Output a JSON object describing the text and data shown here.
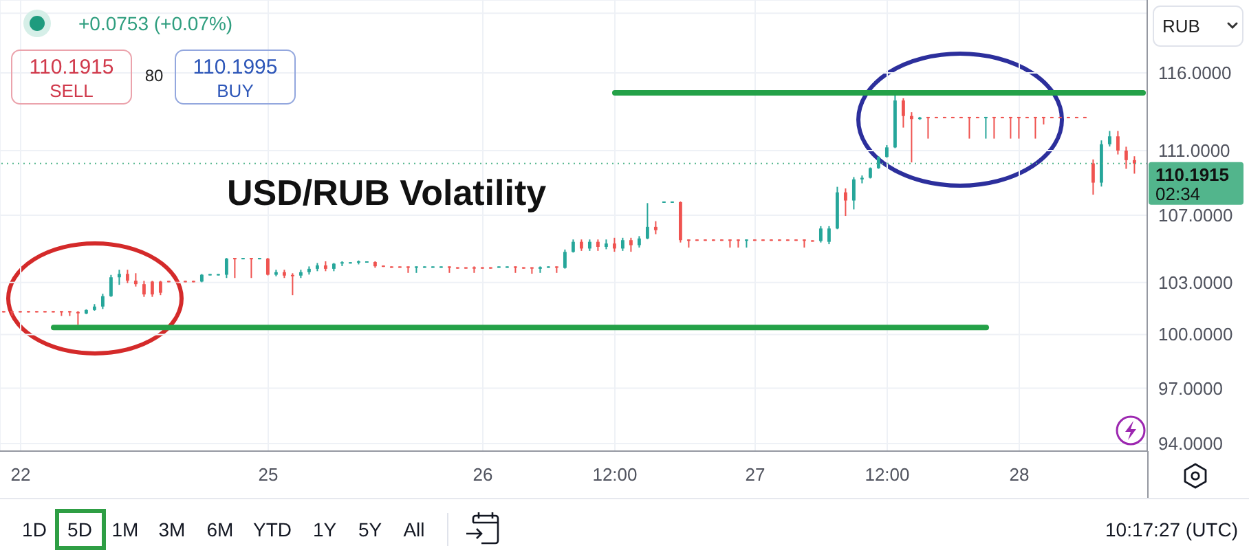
{
  "chart_data": {
    "type": "candlestick",
    "title": "USD/RUB Volatility",
    "categories": [
      null,
      null,
      "22",
      null,
      null,
      null,
      null,
      null,
      null,
      null,
      null,
      null,
      null,
      null,
      null,
      null,
      null,
      null,
      null,
      null,
      null,
      null,
      null,
      null,
      null,
      null,
      null,
      null,
      null,
      null,
      null,
      null,
      "25",
      null,
      null,
      null,
      null,
      null,
      null,
      null,
      null,
      null,
      null,
      null,
      null,
      null,
      null,
      null,
      null,
      null,
      null,
      null,
      null,
      null,
      null,
      null,
      null,
      null,
      "26",
      null,
      null,
      null,
      null,
      null,
      null,
      null,
      null,
      null,
      null,
      null,
      null,
      null,
      null,
      null,
      "12:00",
      null,
      null,
      null,
      null,
      null,
      null,
      null,
      null,
      null,
      null,
      null,
      null,
      null,
      null,
      null,
      null,
      "27",
      null,
      null,
      null,
      null,
      null,
      null,
      null,
      null,
      null,
      null,
      null,
      null,
      null,
      null,
      null,
      "12:00",
      null,
      null,
      null,
      null,
      null,
      null,
      null,
      null,
      null,
      null,
      null,
      null,
      null,
      null,
      null,
      "28",
      null,
      null,
      null,
      null,
      null,
      null,
      null,
      null,
      null,
      null,
      null,
      null,
      null,
      null,
      null
    ],
    "ohlc": [
      [
        101.3,
        101.3,
        101.3,
        101.3
      ],
      [
        101.3,
        101.3,
        101.1,
        101.3
      ],
      [
        101.3,
        101.3,
        101.3,
        101.3
      ],
      [
        101.3,
        101.3,
        101.3,
        101.3
      ],
      [
        101.3,
        101.3,
        101.3,
        101.3
      ],
      [
        101.3,
        101.3,
        101.3,
        101.3
      ],
      [
        101.3,
        101.3,
        101.3,
        101.3
      ],
      [
        101.3,
        101.3,
        101.1,
        101.3
      ],
      [
        101.3,
        101.3,
        101.1,
        101.25
      ],
      [
        101.25,
        101.3,
        100.6,
        101.2
      ],
      [
        101.2,
        101.4,
        101.2,
        101.4
      ],
      [
        101.4,
        101.7,
        101.4,
        101.6
      ],
      [
        101.6,
        102.3,
        101.5,
        102.2
      ],
      [
        102.2,
        103.4,
        102.2,
        103.3
      ],
      [
        103.3,
        103.7,
        102.9,
        103.5
      ],
      [
        103.5,
        103.7,
        103,
        103.1
      ],
      [
        103.1,
        103.5,
        102.8,
        102.9
      ],
      [
        102.9,
        103.05,
        102.2,
        102.3
      ],
      [
        103.05,
        103.05,
        102.2,
        102.3
      ],
      [
        103.05,
        103.05,
        102.3,
        102.4
      ],
      [
        103.05,
        103.05,
        103.05,
        103.05
      ],
      [
        103.05,
        103.05,
        103.05,
        103.05
      ],
      [
        103.05,
        103.05,
        103.05,
        103.05
      ],
      [
        103.05,
        103.05,
        103.05,
        103.05
      ],
      [
        103.05,
        103.45,
        103.05,
        103.45
      ],
      [
        103.45,
        103.45,
        103.45,
        103.45
      ],
      [
        103.45,
        103.45,
        103.45,
        103.45
      ],
      [
        103.45,
        104.4,
        103.3,
        104.4
      ],
      [
        104.4,
        104.4,
        103.3,
        104.35
      ],
      [
        104.4,
        104.4,
        104.4,
        104.4
      ],
      [
        104.4,
        104.4,
        103.3,
        104.35
      ],
      [
        104.4,
        104.4,
        104.4,
        104.4
      ],
      [
        104.4,
        104.4,
        103.45,
        103.45
      ],
      [
        103.45,
        103.7,
        103.4,
        103.6
      ],
      [
        103.6,
        103.7,
        103.3,
        103.4
      ],
      [
        103.4,
        103.5,
        102.3,
        103.4
      ],
      [
        103.4,
        103.7,
        103.3,
        103.6
      ],
      [
        103.6,
        103.9,
        103.5,
        103.8
      ],
      [
        103.8,
        104.1,
        103.7,
        104
      ],
      [
        104,
        104.2,
        103.7,
        103.8
      ],
      [
        103.8,
        104.1,
        103.7,
        104.1
      ],
      [
        104.1,
        104.2,
        104,
        104.15
      ],
      [
        104.15,
        104.15,
        104.15,
        104.15
      ],
      [
        104.15,
        104.25,
        104.1,
        104.2
      ],
      [
        104.2,
        104.2,
        104.2,
        104.2
      ],
      [
        104.2,
        104.2,
        103.9,
        103.95
      ],
      [
        103.95,
        103.95,
        103.95,
        103.95
      ],
      [
        103.9,
        103.9,
        103.9,
        103.9
      ],
      [
        103.9,
        103.9,
        103.9,
        103.9
      ],
      [
        103.9,
        103.9,
        103.6,
        103.85
      ],
      [
        103.85,
        103.9,
        103.6,
        103.9
      ],
      [
        103.9,
        103.9,
        103.9,
        103.9
      ],
      [
        103.9,
        103.9,
        103.9,
        103.9
      ],
      [
        103.9,
        103.9,
        103.9,
        103.9
      ],
      [
        103.9,
        103.9,
        103.6,
        103.85
      ],
      [
        103.85,
        103.85,
        103.85,
        103.85
      ],
      [
        103.85,
        103.85,
        103.85,
        103.85
      ],
      [
        103.85,
        103.9,
        103.6,
        103.85
      ],
      [
        103.85,
        103.85,
        103.85,
        103.85
      ],
      [
        103.85,
        103.85,
        103.85,
        103.85
      ],
      [
        103.9,
        103.9,
        103.9,
        103.9
      ],
      [
        103.9,
        103.9,
        103.9,
        103.9
      ],
      [
        103.9,
        103.9,
        103.6,
        103.85
      ],
      [
        103.85,
        103.85,
        103.85,
        103.85
      ],
      [
        103.85,
        103.85,
        103.55,
        103.8
      ],
      [
        103.8,
        103.9,
        103.6,
        103.9
      ],
      [
        103.9,
        103.9,
        103.9,
        103.9
      ],
      [
        103.9,
        103.9,
        103.6,
        103.85
      ],
      [
        103.85,
        104.9,
        103.85,
        104.8
      ],
      [
        104.8,
        105.5,
        104.8,
        105.4
      ],
      [
        105.4,
        105.5,
        104.9,
        105
      ],
      [
        105,
        105.5,
        104.9,
        105.4
      ],
      [
        105.4,
        105.5,
        104.9,
        105.1
      ],
      [
        105.1,
        105.5,
        105,
        105.3
      ],
      [
        105.3,
        105.6,
        104.85,
        105
      ],
      [
        105,
        105.6,
        104.9,
        105.5
      ],
      [
        105.5,
        105.6,
        104.85,
        105.2
      ],
      [
        105.2,
        105.7,
        105.1,
        105.6
      ],
      [
        105.6,
        107.7,
        105.6,
        106.3
      ],
      [
        106.3,
        106.6,
        105.9,
        106.1
      ],
      [
        107.8,
        107.8,
        107.8,
        107.8
      ],
      [
        107.8,
        107.8,
        107.8,
        107.8
      ],
      [
        107.8,
        107.8,
        105.4,
        105.5
      ],
      [
        105.5,
        105.5,
        105.1,
        105.5
      ],
      [
        105.5,
        105.5,
        105.5,
        105.5
      ],
      [
        105.5,
        105.5,
        105.5,
        105.5
      ],
      [
        105.5,
        105.5,
        105.5,
        105.5
      ],
      [
        105.5,
        105.5,
        105.5,
        105.5
      ],
      [
        105.5,
        105.5,
        105.1,
        105.45
      ],
      [
        105.5,
        105.5,
        105.1,
        105.45
      ],
      [
        105.45,
        105.5,
        105.1,
        105.5
      ],
      [
        105.5,
        105.5,
        105.5,
        105.5
      ],
      [
        105.5,
        105.5,
        105.5,
        105.5
      ],
      [
        105.5,
        105.5,
        105.5,
        105.5
      ],
      [
        105.5,
        105.5,
        105.5,
        105.5
      ],
      [
        105.5,
        105.5,
        105.5,
        105.5
      ],
      [
        105.5,
        105.5,
        105.5,
        105.5
      ],
      [
        105.5,
        105.5,
        105.1,
        105.45
      ],
      [
        105.45,
        105.45,
        105.45,
        105.45
      ],
      [
        105.45,
        106.3,
        105.4,
        106.2
      ],
      [
        105.4,
        106.3,
        105.3,
        106.2
      ],
      [
        106.2,
        108.7,
        106.2,
        108.4
      ],
      [
        108.4,
        108.6,
        107,
        107.9
      ],
      [
        107.9,
        109.3,
        107.4,
        109.2
      ],
      [
        109.2,
        109.4,
        109,
        109.3
      ],
      [
        109.3,
        109.9,
        109.3,
        109.9
      ],
      [
        109.9,
        110.6,
        109.9,
        110.6
      ],
      [
        110.6,
        111.3,
        110.6,
        111.2
      ],
      [
        111.2,
        114.5,
        111.2,
        114.2
      ],
      [
        114.2,
        114.3,
        112.5,
        113.2
      ],
      [
        113.2,
        113.4,
        110.3,
        113
      ],
      [
        113,
        113.1,
        113,
        113.1
      ],
      [
        113.1,
        113.1,
        111.8,
        113.05
      ],
      [
        113.1,
        113.1,
        113.1,
        113.1
      ],
      [
        113.1,
        113.1,
        113.1,
        113.1
      ],
      [
        113.1,
        113.1,
        113.1,
        113.1
      ],
      [
        113.1,
        113.1,
        113.1,
        113.1
      ],
      [
        113.1,
        113.1,
        111.8,
        113.05
      ],
      [
        113.1,
        113.1,
        113.1,
        113.1
      ],
      [
        113.05,
        113.1,
        111.8,
        113.1
      ],
      [
        113.1,
        113.1,
        111.8,
        113.05
      ],
      [
        113.1,
        113.1,
        113.1,
        113.1
      ],
      [
        113.1,
        113.1,
        111.8,
        113.05
      ],
      [
        113.1,
        113.1,
        111.8,
        113.05
      ],
      [
        113.1,
        113.1,
        113.1,
        113.1
      ],
      [
        113.1,
        113.1,
        111.8,
        113.05
      ],
      [
        113.1,
        113.1,
        112.7,
        113.05
      ],
      [
        113.1,
        113.1,
        113.1,
        113.1
      ],
      [
        113.1,
        113.1,
        113.1,
        113.1
      ],
      [
        113.1,
        113.1,
        113.1,
        113.1
      ],
      [
        113.1,
        113.1,
        113.1,
        113.1
      ],
      [
        113.1,
        113.1,
        113.1,
        113.1
      ],
      [
        110.2,
        110.4,
        108.3,
        109
      ],
      [
        109,
        111.6,
        108.8,
        111.4
      ],
      [
        111.4,
        112.2,
        111.3,
        111.9
      ],
      [
        111.9,
        112.2,
        110.8,
        111
      ],
      [
        111,
        111.2,
        109.9,
        110.4
      ],
      [
        110.4,
        110.6,
        109.6,
        110.19
      ],
      null
    ],
    "colors": [
      "#ef5350",
      "#ef5350",
      "#ef5350",
      "#ef5350",
      "#ef5350",
      "#ef5350",
      "#ef5350",
      "#ef5350",
      "#ef5350",
      "#ef5350",
      "#26a69a",
      "#26a69a",
      "#26a69a",
      "#26a69a",
      "#26a69a",
      "#ef5350",
      "#ef5350",
      "#ef5350",
      "#ef5350",
      "#ef5350",
      "#ef5350",
      "#ef5350",
      "#ef5350",
      "#ef5350",
      "#26a69a",
      "#26a69a",
      "#26a69a",
      "#26a69a",
      "#ef5350",
      "#26a69a",
      "#ef5350",
      "#26a69a",
      "#ef5350",
      "#26a69a",
      "#ef5350",
      "#ef5350",
      "#26a69a",
      "#26a69a",
      "#26a69a",
      "#ef5350",
      "#26a69a",
      "#26a69a",
      "#26a69a",
      "#26a69a",
      "#26a69a",
      "#ef5350",
      "#ef5350",
      "#ef5350",
      "#ef5350",
      "#ef5350",
      "#26a69a",
      "#26a69a",
      "#26a69a",
      "#26a69a",
      "#ef5350",
      "#ef5350",
      "#ef5350",
      "#ef5350",
      "#ef5350",
      "#ef5350",
      "#26a69a",
      "#26a69a",
      "#ef5350",
      "#ef5350",
      "#ef5350",
      "#26a69a",
      "#26a69a",
      "#ef5350",
      "#26a69a",
      "#26a69a",
      "#ef5350",
      "#26a69a",
      "#ef5350",
      "#26a69a",
      "#ef5350",
      "#26a69a",
      "#ef5350",
      "#26a69a",
      "#26a69a",
      "#ef5350",
      "#26a69a",
      "#26a69a",
      "#ef5350",
      "#ef5350",
      "#ef5350",
      "#ef5350",
      "#ef5350",
      "#ef5350",
      "#ef5350",
      "#ef5350",
      "#26a69a",
      "#ef5350",
      "#ef5350",
      "#ef5350",
      "#ef5350",
      "#ef5350",
      "#ef5350",
      "#ef5350",
      "#ef5350",
      "#26a69a",
      "#26a69a",
      "#26a69a",
      "#ef5350",
      "#26a69a",
      "#26a69a",
      "#26a69a",
      "#26a69a",
      "#26a69a",
      "#26a69a",
      "#ef5350",
      "#ef5350",
      "#26a69a",
      "#ef5350",
      "#ef5350",
      "#ef5350",
      "#ef5350",
      "#ef5350",
      "#ef5350",
      "#ef5350",
      "#26a69a",
      "#ef5350",
      "#ef5350",
      "#ef5350",
      "#ef5350",
      "#ef5350",
      "#ef5350",
      "#ef5350",
      "#ef5350",
      "#ef5350",
      "#ef5350",
      "#ef5350",
      "#ef5350",
      "#ef5350",
      "#26a69a",
      "#26a69a",
      "#ef5350",
      "#ef5350",
      "#ef5350",
      null
    ],
    "series": [
      {
        "type": "line",
        "color": "#24a148",
        "values": [
          null,
          null,
          null,
          null,
          null,
          null,
          100.4,
          100.4,
          100.4,
          100.4,
          100.4,
          100.4,
          100.4,
          100.4,
          100.4,
          100.4,
          100.4,
          100.4,
          100.4,
          100.4,
          100.4,
          100.4,
          100.4,
          100.4,
          100.4,
          100.4,
          100.4,
          100.4,
          100.4,
          100.4,
          100.4,
          100.4,
          100.4,
          100.4,
          100.4,
          100.4,
          100.4,
          100.4,
          100.4,
          100.4,
          100.4,
          100.4,
          100.4,
          100.4,
          100.4,
          100.4,
          100.4,
          100.4,
          100.4,
          100.4,
          100.4,
          100.4,
          100.4,
          100.4,
          100.4,
          100.4,
          100.4,
          100.4,
          100.4,
          100.4,
          100.4,
          100.4,
          100.4,
          100.4,
          100.4,
          100.4,
          100.4,
          100.4,
          100.4,
          100.4,
          100.4,
          100.4,
          100.4,
          100.4,
          100.4,
          100.4,
          100.4,
          100.4,
          100.4,
          100.4,
          100.4,
          100.4,
          100.4,
          100.4,
          100.4,
          100.4,
          100.4,
          100.4,
          100.4,
          100.4,
          100.4,
          100.4,
          100.4,
          100.4,
          100.4,
          100.4,
          100.4,
          100.4,
          100.4,
          100.4,
          100.4,
          100.4,
          100.4,
          100.4,
          100.4,
          100.4,
          100.4,
          100.4,
          100.4,
          100.4,
          100.4,
          100.4,
          100.4,
          100.4,
          100.4,
          100.4,
          100.4,
          100.4,
          100.4,
          100.4,
          null,
          null,
          null,
          null,
          null,
          null,
          null,
          null,
          null,
          null,
          null,
          null,
          null,
          null,
          null,
          null,
          null,
          null,
          null
        ]
      },
      {
        "type": "line",
        "color": "#24a148",
        "values": [
          null,
          null,
          null,
          null,
          null,
          null,
          null,
          null,
          null,
          null,
          null,
          null,
          null,
          null,
          null,
          null,
          null,
          null,
          null,
          null,
          null,
          null,
          null,
          null,
          null,
          null,
          null,
          null,
          null,
          null,
          null,
          null,
          null,
          null,
          null,
          null,
          null,
          null,
          null,
          null,
          null,
          null,
          null,
          null,
          null,
          null,
          null,
          null,
          null,
          null,
          null,
          null,
          null,
          null,
          null,
          null,
          null,
          null,
          null,
          null,
          null,
          null,
          null,
          null,
          null,
          null,
          null,
          null,
          null,
          null,
          null,
          null,
          null,
          null,
          114.7,
          114.7,
          114.7,
          114.7,
          114.7,
          114.7,
          114.7,
          114.7,
          114.7,
          114.7,
          114.7,
          114.7,
          114.7,
          114.7,
          114.7,
          114.7,
          114.7,
          114.7,
          114.7,
          114.7,
          114.7,
          114.7,
          114.7,
          114.7,
          114.7,
          114.7,
          114.7,
          114.7,
          114.7,
          114.7,
          114.7,
          114.7,
          114.7,
          114.7,
          114.7,
          114.7,
          114.7,
          114.7,
          114.7,
          114.7,
          114.7,
          114.7,
          114.7,
          114.7,
          114.7,
          114.7,
          114.7,
          114.7,
          114.7,
          114.7,
          114.7,
          114.7,
          114.7,
          114.7,
          114.7,
          114.7,
          114.7,
          114.7,
          114.7,
          114.7,
          114.7,
          114.7,
          114.7,
          114.7,
          114.7
        ]
      }
    ],
    "ylim": [
      93.6,
      120.9
    ],
    "yticks": [
      {
        "value": 94,
        "label": "94.0000"
      },
      {
        "value": 97,
        "label": "97.0000"
      },
      {
        "value": 100,
        "label": "100.0000"
      },
      {
        "value": 103,
        "label": "103.0000"
      },
      {
        "value": 107,
        "label": "107.0000"
      },
      {
        "value": 111,
        "label": "111.0000"
      },
      {
        "value": 116,
        "label": "116.0000"
      },
      {
        "value": 120,
        "label": null
      }
    ],
    "log": true,
    "grid": true,
    "ref_lines": [
      {
        "axis": "y",
        "value": 110.1915,
        "label": "110.1915",
        "color": "#52b58c",
        "line_style": "dotted"
      }
    ],
    "annotations": [
      "+0.0753 (+0.07%)",
      "110.1915",
      "SELL",
      "80",
      "110.1995",
      "BUY",
      "RUB",
      "02:34",
      "1D",
      "5D",
      "1M",
      "3M",
      "6M",
      "YTD",
      "1Y",
      "5Y",
      "All",
      "10:17:27 (UTC)"
    ]
  }
}
